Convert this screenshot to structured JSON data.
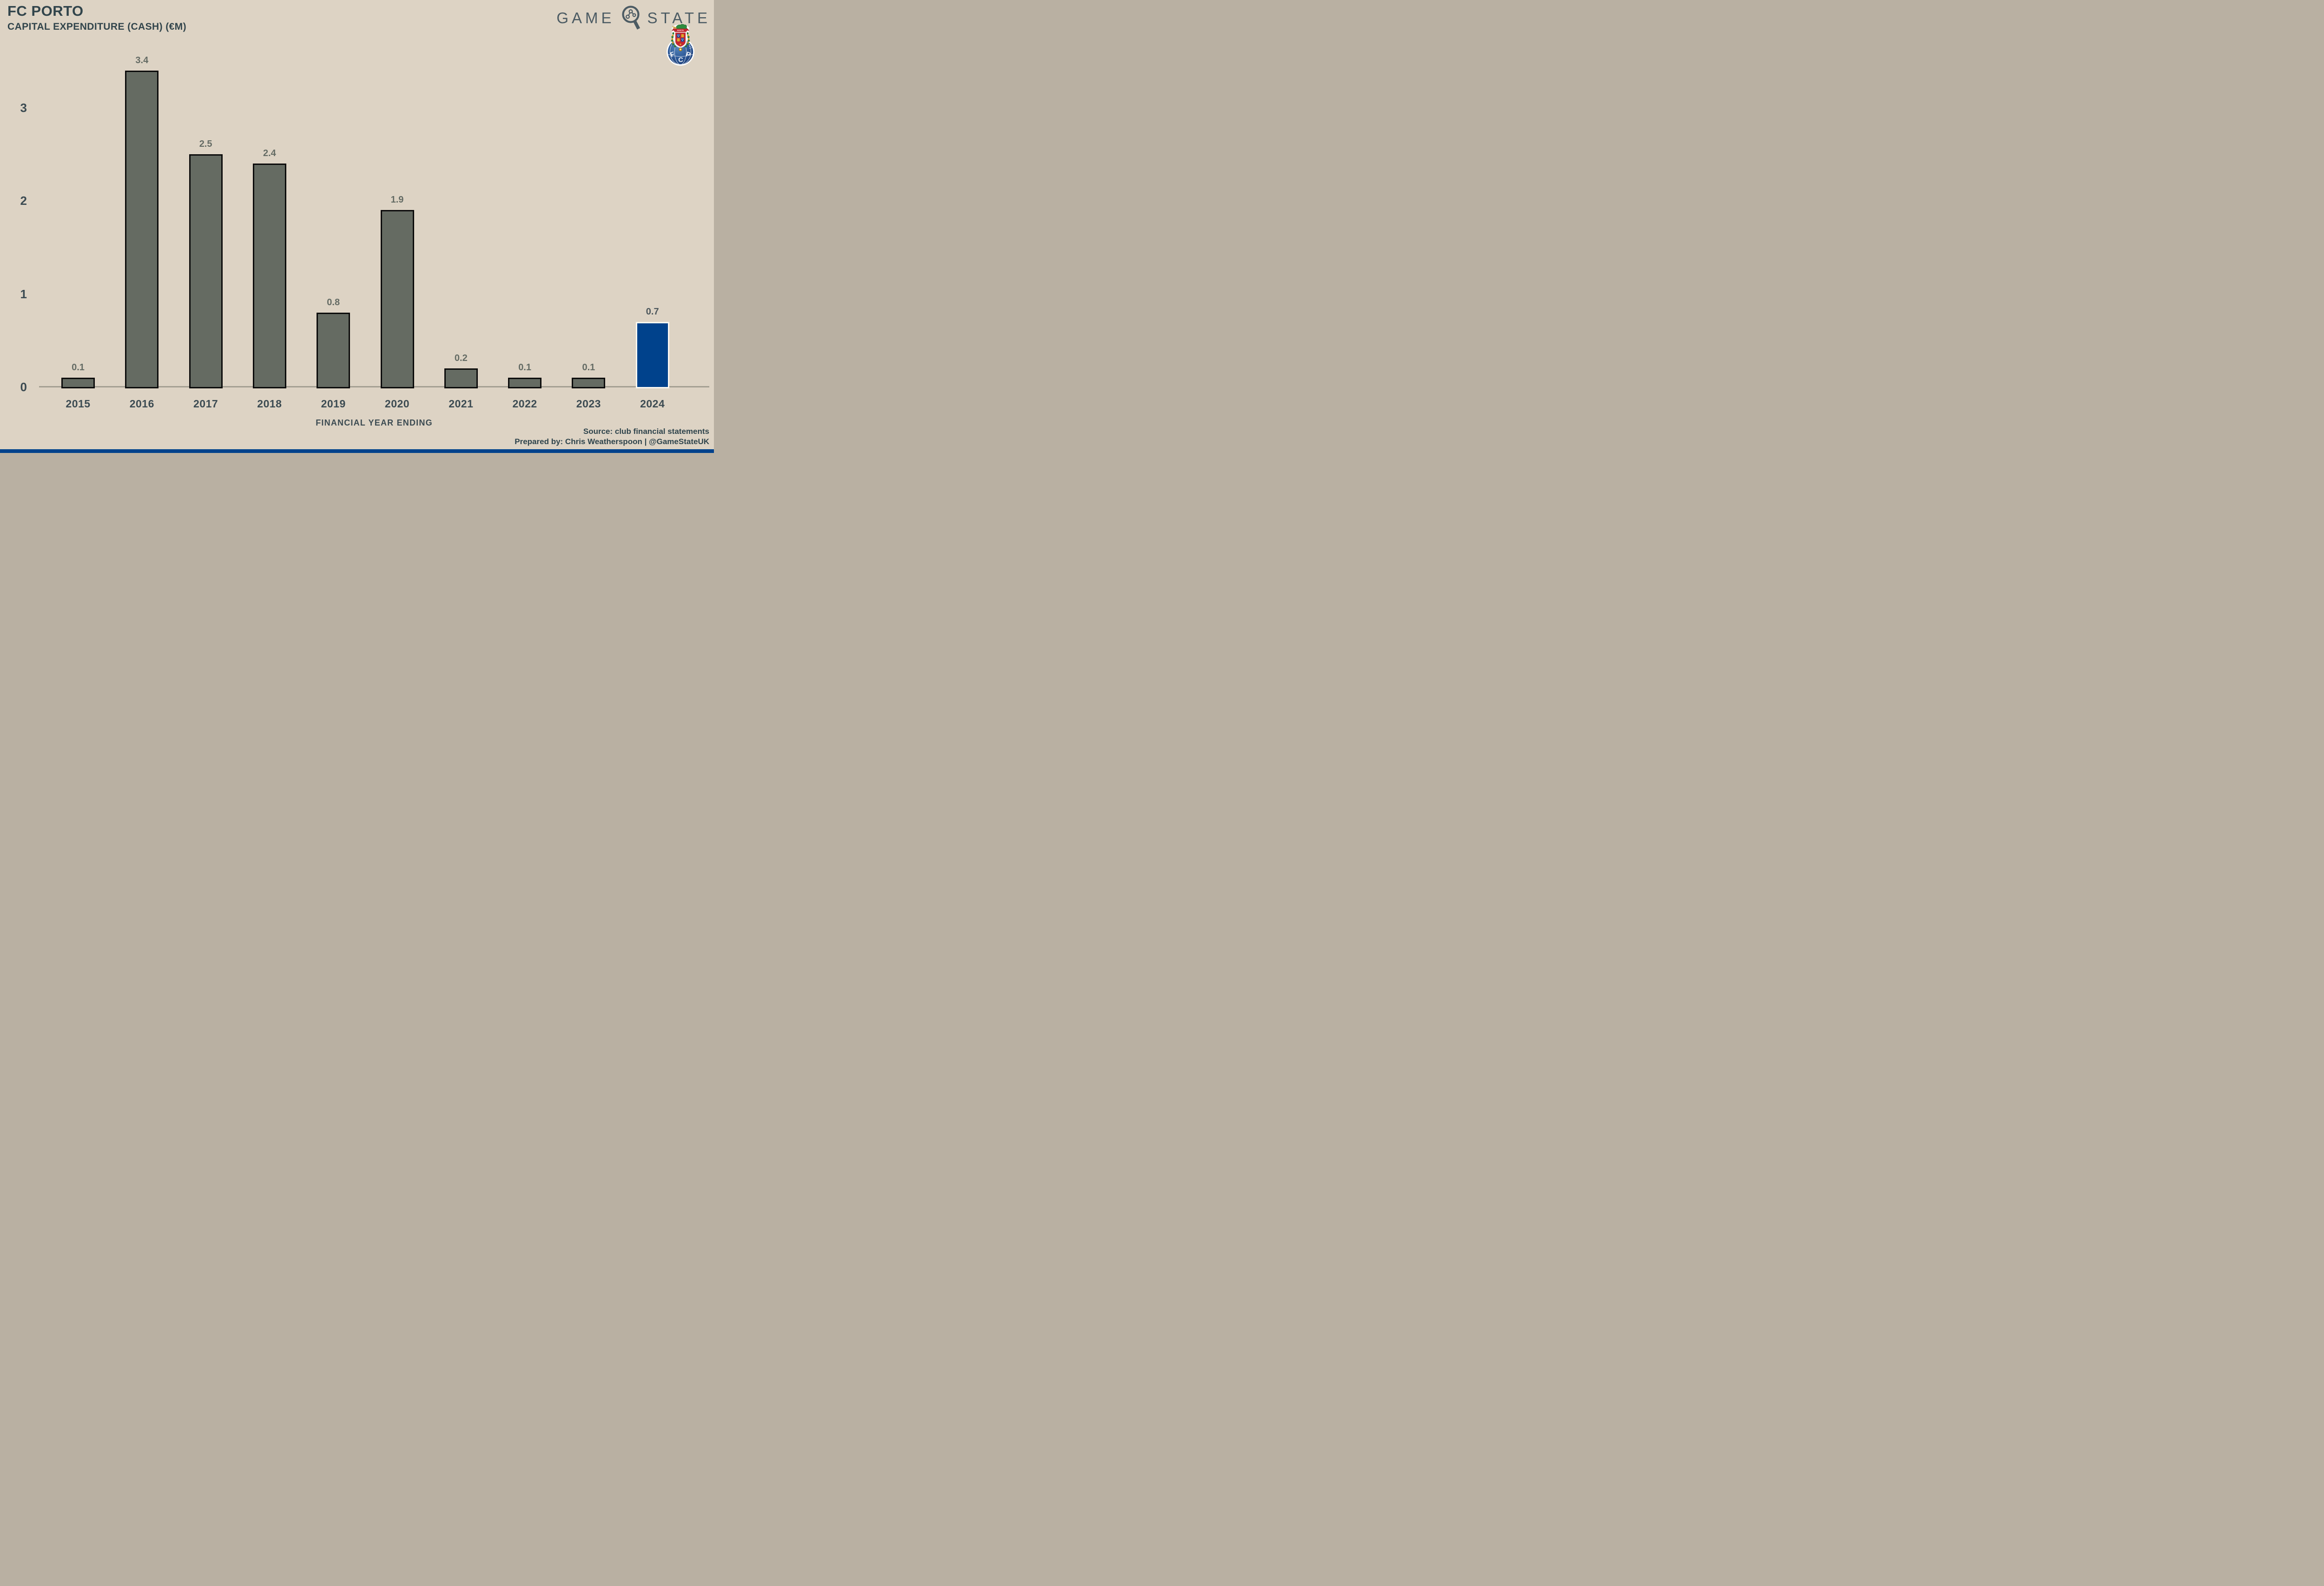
{
  "header": {
    "title": "FC PORTO",
    "subtitle": "CAPITAL EXPENDITURE (CASH) (€M)"
  },
  "brand": {
    "word_left": "GAME",
    "word_right": "STATE",
    "magnifier_icon": "magnifier-with-network",
    "crest_icon": "fc-porto-crest",
    "crest_letters": "FCP",
    "crest_motto": "INVICTA"
  },
  "chart_data": {
    "type": "bar",
    "categories": [
      "2015",
      "2016",
      "2017",
      "2018",
      "2019",
      "2020",
      "2021",
      "2022",
      "2023",
      "2024"
    ],
    "values": [
      0.1,
      3.4,
      2.5,
      2.4,
      0.8,
      1.9,
      0.2,
      0.1,
      0.1,
      0.7
    ],
    "bar_labels": [
      "0.1",
      "3.4",
      "2.5",
      "2.4",
      "0.8",
      "1.9",
      "0.2",
      "0.1",
      "0.1",
      "0.7"
    ],
    "title": "FC PORTO — CAPITAL EXPENDITURE (CASH) (€M)",
    "xlabel": "FINANCIAL YEAR ENDING",
    "ylabel": "",
    "ytick_labels": [
      "0",
      "1",
      "2",
      "3"
    ],
    "yticks": [
      0,
      1,
      2,
      3
    ],
    "ylim": [
      0,
      3.5
    ],
    "grid": false,
    "legend": null,
    "highlight_category": "2024",
    "colors": {
      "background": "#DDD3C4",
      "bar": "#656B62",
      "bar_border": "#0B0B0B",
      "highlight_bar": "#00428C",
      "highlight_bar_border": "#FAF7F1",
      "axis_line": "#A49F92",
      "value_label": "#646B64",
      "highlight_value_label": "#4D575C",
      "text": "#31444B"
    }
  },
  "footer": {
    "source": "Source: club financial statements",
    "prepared": "Prepared by: Chris Weatherspoon | @GameStateUK"
  }
}
